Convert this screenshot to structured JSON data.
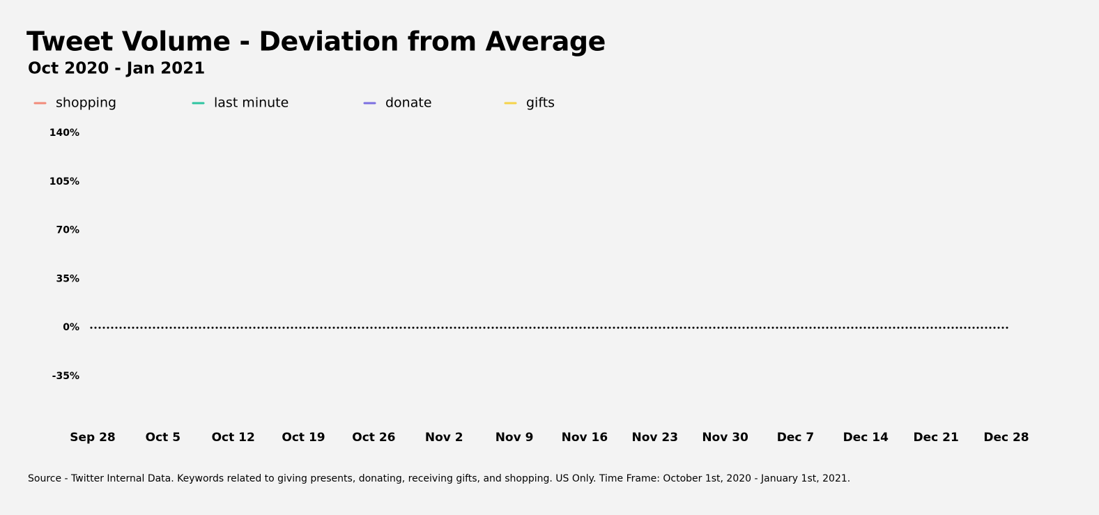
{
  "chart_data": {
    "type": "line",
    "title": "Tweet Volume - Deviation from Average",
    "subtitle": "Oct 2020 - Jan 2021",
    "source": "Source - Twitter Internal Data. Keywords related to giving presents, donating, receiving gifts, and shopping. US Only. Time Frame: October 1st, 2020 - January 1st, 2021.",
    "series": [
      {
        "name": "shopping",
        "color": "#f28b7a"
      },
      {
        "name": "last minute",
        "color": "#2ec4a0"
      },
      {
        "name": "donate",
        "color": "#7b6fe0"
      },
      {
        "name": "gifts",
        "color": "#f5d34a"
      }
    ],
    "xticks": [
      "Sep 28",
      "Oct 5",
      "Oct 12",
      "Oct 19",
      "Oct 26",
      "Nov 2",
      "Nov 9",
      "Nov 16",
      "Nov 23",
      "Nov 30",
      "Dec 7",
      "Dec 14",
      "Dec 21",
      "Dec 28"
    ],
    "ylim": [
      -35,
      140
    ],
    "yticks": [
      {
        "value": 140,
        "label": "140%"
      },
      {
        "value": 105,
        "label": "105%"
      },
      {
        "value": 70,
        "label": "70%"
      },
      {
        "value": 35,
        "label": "35%"
      },
      {
        "value": 0,
        "label": "0%"
      },
      {
        "value": -35,
        "label": "-35%"
      }
    ],
    "legend": "top"
  }
}
